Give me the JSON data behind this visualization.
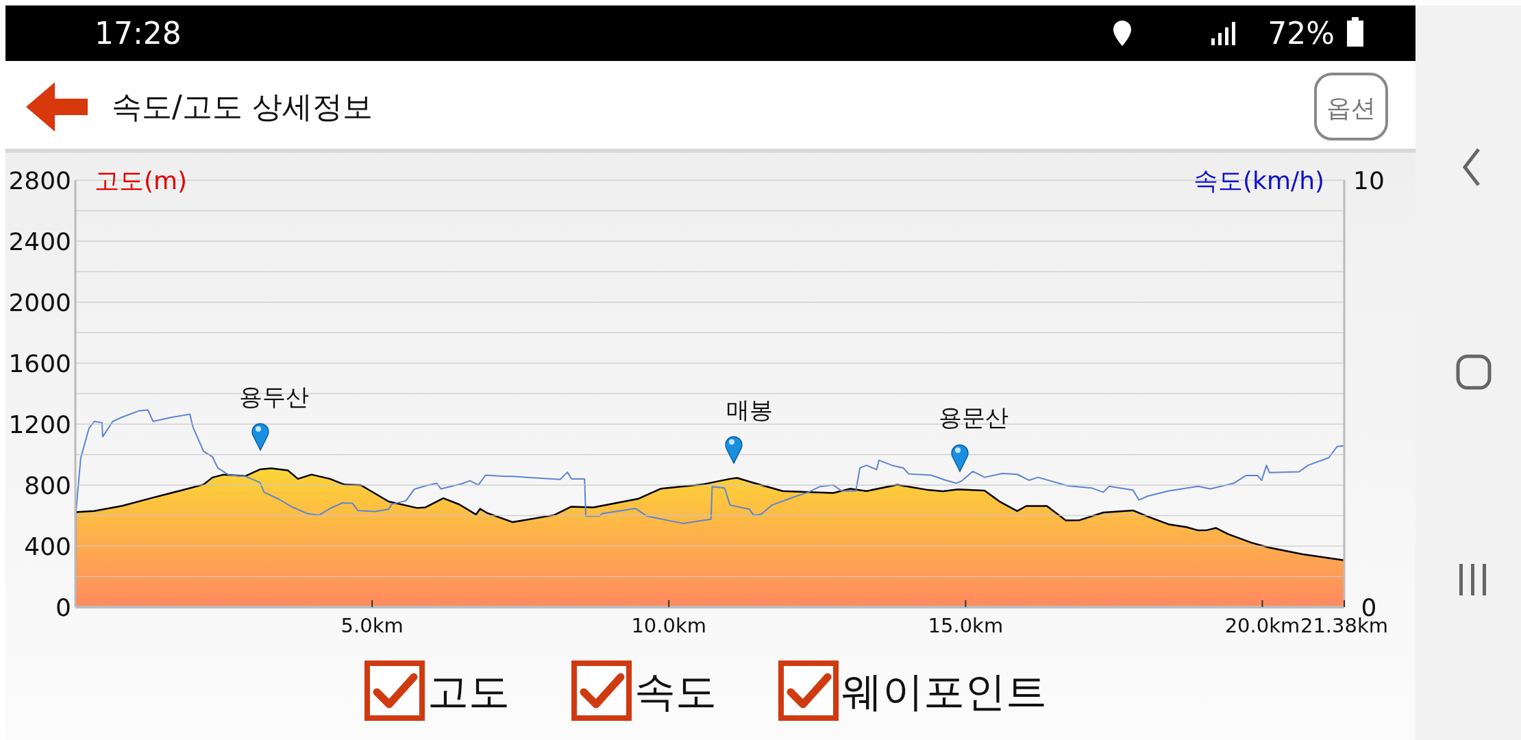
{
  "chart_data": {
    "type": "area",
    "title": "속도/고도 상세정보",
    "ylabel": "고도(m)",
    "y2label": "속도(km/h)",
    "xlim": [
      0,
      21.38
    ],
    "xticks": [
      {
        "value": 5,
        "label": "5.0km"
      },
      {
        "value": 10,
        "label": "10.0km"
      },
      {
        "value": 15,
        "label": "15.0km"
      },
      {
        "value": 20,
        "label": "20.0km"
      },
      {
        "value": 21.38,
        "label": "21.38km"
      }
    ],
    "ylim": [
      0,
      2800
    ],
    "yticks": [
      0,
      {
        "value": 200,
        "label": null
      },
      400,
      {
        "value": 600,
        "label": null
      },
      800,
      {
        "value": 1000,
        "label": null
      },
      1200,
      {
        "value": 1400,
        "label": null
      },
      1600,
      {
        "value": 1800,
        "label": null
      },
      2000,
      {
        "value": 2200,
        "label": null
      },
      2400,
      {
        "value": 2600,
        "label": null
      },
      2800
    ],
    "y2lim": [
      0,
      10
    ],
    "y2ticks": [
      0,
      10
    ],
    "grid": "y",
    "series": [
      {
        "color": "#fcd535",
        "x": [
          0,
          0.32,
          0.79,
          1.27,
          1.74,
          2.16,
          2.31,
          2.5,
          2.87,
          3.11,
          3.3,
          3.58,
          3.75,
          3.98,
          4.29,
          4.53,
          4.81,
          5.28,
          5.76,
          5.9,
          6.2,
          6.47,
          6.75,
          6.82,
          6.94,
          7.37,
          8.07,
          8.35,
          8.73,
          9.48,
          9.86,
          10.56,
          11.03,
          11.15,
          11.41,
          11.92,
          12.77,
          13.05,
          13.33,
          13.85,
          14.37,
          14.62,
          14.87,
          15.32,
          15.57,
          15.87,
          16.02,
          16.37,
          16.69,
          16.92,
          17.32,
          17.82,
          18.07,
          18.42,
          18.72,
          18.92,
          19.07,
          19.22,
          19.42,
          19.82,
          20.12,
          20.67,
          21.38
        ],
        "values": [
          622,
          630,
          664,
          714,
          761,
          804,
          850,
          869,
          860,
          903,
          910,
          897,
          841,
          869,
          841,
          804,
          800,
          692,
          650,
          654,
          714,
          673,
          607,
          645,
          617,
          557,
          604,
          658,
          654,
          710,
          776,
          804,
          841,
          847,
          817,
          761,
          748,
          776,
          761,
          802,
          768,
          760,
          772,
          764,
          693,
          630,
          663,
          663,
          568,
          570,
          620,
          634,
          594,
          543,
          525,
          503,
          505,
          519,
          479,
          422,
          390,
          347,
          307
        ]
      },
      {
        "type": "line",
        "axis": "y2",
        "color": "#5b84d6",
        "x": [
          0,
          0.01,
          0.09,
          0.23,
          0.32,
          0.45,
          0.46,
          0.63,
          0.79,
          1.08,
          1.22,
          1.31,
          1.64,
          1.93,
          1.98,
          2.16,
          2.31,
          2.4,
          2.59,
          2.87,
          3.11,
          3.18,
          3.44,
          3.63,
          3.91,
          4.1,
          4.29,
          4.5,
          4.67,
          4.76,
          5.05,
          5.28,
          5.33,
          5.57,
          5.71,
          5.9,
          6.09,
          6.16,
          6.51,
          6.65,
          6.79,
          6.91,
          7.26,
          7.37,
          8.17,
          8.29,
          8.36,
          8.58,
          8.6,
          8.83,
          8.88,
          9.44,
          9.63,
          10.24,
          10.71,
          10.73,
          10.94,
          11.03,
          11.36,
          11.43,
          11.55,
          11.74,
          12.07,
          12.35,
          12.54,
          12.77,
          12.91,
          13.15,
          13.22,
          13.33,
          13.5,
          13.54,
          13.76,
          13.95,
          14.04,
          14.42,
          14.67,
          14.84,
          14.94,
          15.12,
          15.32,
          15.62,
          15.87,
          16.07,
          16.22,
          16.72,
          17.12,
          17.32,
          17.42,
          17.82,
          17.92,
          18.07,
          18.42,
          18.92,
          19.12,
          19.52,
          19.72,
          19.92,
          19.99,
          20.07,
          20.12,
          20.62,
          20.77,
          21.12,
          21.26,
          21.38
        ],
        "values": [
          0,
          2.23,
          3.49,
          4.19,
          4.35,
          4.32,
          3.99,
          4.35,
          4.45,
          4.6,
          4.62,
          4.35,
          4.45,
          4.52,
          4.22,
          3.65,
          3.52,
          3.26,
          3.09,
          3.06,
          2.92,
          2.69,
          2.52,
          2.36,
          2.19,
          2.15,
          2.31,
          2.44,
          2.43,
          2.26,
          2.24,
          2.29,
          2.41,
          2.49,
          2.76,
          2.84,
          2.9,
          2.77,
          2.89,
          2.96,
          2.86,
          3.09,
          3.06,
          3.06,
          2.99,
          3.16,
          3.0,
          3.0,
          2.13,
          2.13,
          2.19,
          2.31,
          2.13,
          1.96,
          2.06,
          2.82,
          2.79,
          2.39,
          2.29,
          2.15,
          2.17,
          2.39,
          2.56,
          2.69,
          2.82,
          2.86,
          2.72,
          2.72,
          3.26,
          3.32,
          3.22,
          3.44,
          3.32,
          3.26,
          3.12,
          3.09,
          2.97,
          2.9,
          2.96,
          3.18,
          3.04,
          3.13,
          3.11,
          2.97,
          3.04,
          2.84,
          2.79,
          2.69,
          2.83,
          2.74,
          2.51,
          2.6,
          2.72,
          2.83,
          2.77,
          2.9,
          3.08,
          3.08,
          2.97,
          3.32,
          3.15,
          3.17,
          3.32,
          3.5,
          3.76,
          3.78
        ]
      }
    ],
    "annotations": [
      "용두산",
      "매봉",
      "용문산",
      "고도",
      "속도",
      "웨이포인트",
      "옵션",
      "17:28",
      "72%"
    ]
  }
}
